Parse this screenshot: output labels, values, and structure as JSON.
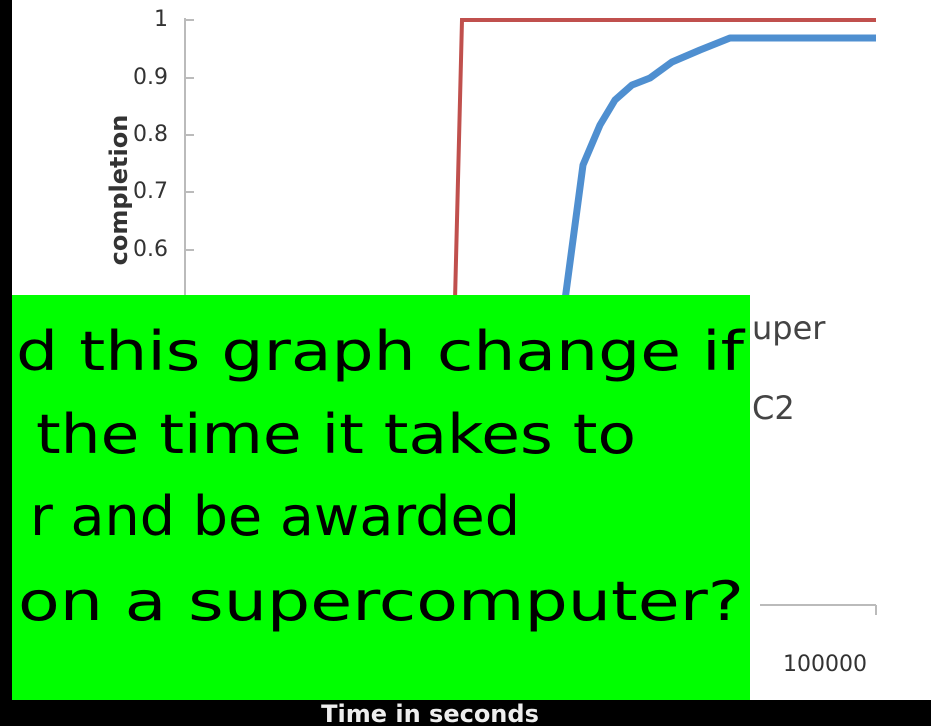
{
  "chart": {
    "y_axis_label": "completion",
    "yticks": [
      "1",
      "0.9",
      "0.8",
      "0.7",
      "0.6"
    ],
    "legend": [
      "uper",
      "C2"
    ],
    "xtick": "100000",
    "x_axis_label": "Time in seconds"
  },
  "overlay": {
    "lines": [
      "d this graph change if",
      "the time it takes to",
      "r and be awarded",
      "on a supercomputer?"
    ]
  }
}
